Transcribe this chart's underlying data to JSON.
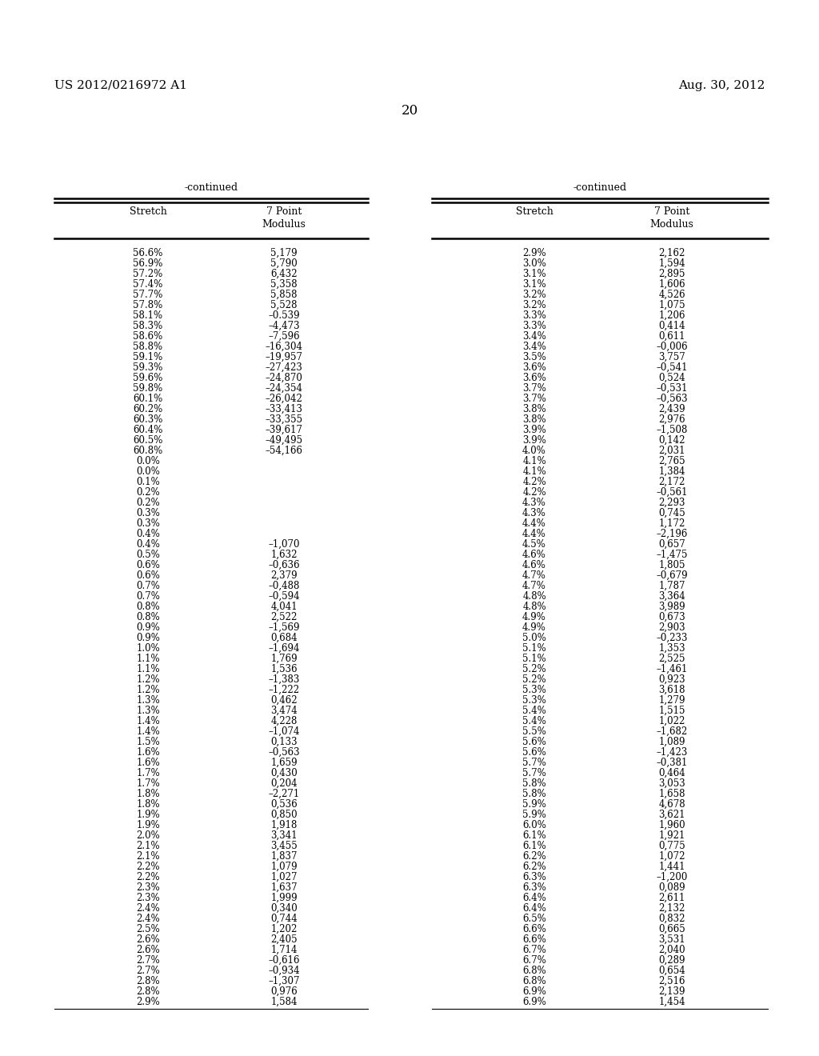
{
  "header_left": "US 2012/0216972 A1",
  "header_right": "Aug. 30, 2012",
  "page_number": "20",
  "continued_label": "-continued",
  "left_data": [
    [
      "56.6%",
      "5,179"
    ],
    [
      "56.9%",
      "5,790"
    ],
    [
      "57.2%",
      "6,432"
    ],
    [
      "57.4%",
      "5,358"
    ],
    [
      "57.7%",
      "5,858"
    ],
    [
      "57.8%",
      "5,528"
    ],
    [
      "58.1%",
      "–0.539"
    ],
    [
      "58.3%",
      "–4,473"
    ],
    [
      "58.6%",
      "–7,596"
    ],
    [
      "58.8%",
      "–16,304"
    ],
    [
      "59.1%",
      "–19,957"
    ],
    [
      "59.3%",
      "–27,423"
    ],
    [
      "59.6%",
      "–24,870"
    ],
    [
      "59.8%",
      "–24,354"
    ],
    [
      "60.1%",
      "–26,042"
    ],
    [
      "60.2%",
      "–33,413"
    ],
    [
      "60.3%",
      "–33,355"
    ],
    [
      "60.4%",
      "–39,617"
    ],
    [
      "60.5%",
      "–49,495"
    ],
    [
      "60.8%",
      "–54,166"
    ],
    [
      "0.0%",
      ""
    ],
    [
      "0.0%",
      ""
    ],
    [
      "0.1%",
      ""
    ],
    [
      "0.2%",
      ""
    ],
    [
      "0.2%",
      ""
    ],
    [
      "0.3%",
      ""
    ],
    [
      "0.3%",
      ""
    ],
    [
      "0.4%",
      ""
    ],
    [
      "0.4%",
      "–1,070"
    ],
    [
      "0.5%",
      "1,632"
    ],
    [
      "0.6%",
      "–0,636"
    ],
    [
      "0.6%",
      "2,379"
    ],
    [
      "0.7%",
      "–0,488"
    ],
    [
      "0.7%",
      "–0,594"
    ],
    [
      "0.8%",
      "4,041"
    ],
    [
      "0.8%",
      "2,522"
    ],
    [
      "0.9%",
      "–1,569"
    ],
    [
      "0.9%",
      "0,684"
    ],
    [
      "1.0%",
      "–1,694"
    ],
    [
      "1.1%",
      "1,769"
    ],
    [
      "1.1%",
      "1,536"
    ],
    [
      "1.2%",
      "–1,383"
    ],
    [
      "1.2%",
      "–1,222"
    ],
    [
      "1.3%",
      "0,462"
    ],
    [
      "1.3%",
      "3,474"
    ],
    [
      "1.4%",
      "4,228"
    ],
    [
      "1.4%",
      "–1,074"
    ],
    [
      "1.5%",
      "0,133"
    ],
    [
      "1.6%",
      "–0,563"
    ],
    [
      "1.6%",
      "1,659"
    ],
    [
      "1.7%",
      "0,430"
    ],
    [
      "1.7%",
      "0,204"
    ],
    [
      "1.8%",
      "–2,271"
    ],
    [
      "1.8%",
      "0,536"
    ],
    [
      "1.9%",
      "0,850"
    ],
    [
      "1.9%",
      "1,918"
    ],
    [
      "2.0%",
      "3,341"
    ],
    [
      "2.1%",
      "3,455"
    ],
    [
      "2.1%",
      "1,837"
    ],
    [
      "2.2%",
      "1,079"
    ],
    [
      "2.2%",
      "1,027"
    ],
    [
      "2.3%",
      "1,637"
    ],
    [
      "2.3%",
      "1,999"
    ],
    [
      "2.4%",
      "0,340"
    ],
    [
      "2.4%",
      "0,744"
    ],
    [
      "2.5%",
      "1,202"
    ],
    [
      "2.6%",
      "2,405"
    ],
    [
      "2.6%",
      "1,714"
    ],
    [
      "2.7%",
      "–0,616"
    ],
    [
      "2.7%",
      "–0,934"
    ],
    [
      "2.8%",
      "–1,307"
    ],
    [
      "2.8%",
      "0,976"
    ],
    [
      "2.9%",
      "1,584"
    ]
  ],
  "right_data": [
    [
      "2.9%",
      "2,162"
    ],
    [
      "3.0%",
      "1,594"
    ],
    [
      "3.1%",
      "2,895"
    ],
    [
      "3.1%",
      "1,606"
    ],
    [
      "3.2%",
      "4,526"
    ],
    [
      "3.2%",
      "1,075"
    ],
    [
      "3.3%",
      "1,206"
    ],
    [
      "3.3%",
      "0,414"
    ],
    [
      "3.4%",
      "0,611"
    ],
    [
      "3.4%",
      "–0,006"
    ],
    [
      "3.5%",
      "3,757"
    ],
    [
      "3.6%",
      "–0,541"
    ],
    [
      "3.6%",
      "0,524"
    ],
    [
      "3.7%",
      "–0,531"
    ],
    [
      "3.7%",
      "–0,563"
    ],
    [
      "3.8%",
      "2,439"
    ],
    [
      "3.8%",
      "2,976"
    ],
    [
      "3.9%",
      "–1,508"
    ],
    [
      "3.9%",
      "0,142"
    ],
    [
      "4.0%",
      "2,031"
    ],
    [
      "4.1%",
      "2,765"
    ],
    [
      "4.1%",
      "1,384"
    ],
    [
      "4.2%",
      "2,172"
    ],
    [
      "4.2%",
      "–0,561"
    ],
    [
      "4.3%",
      "2,293"
    ],
    [
      "4.3%",
      "0,745"
    ],
    [
      "4.4%",
      "1,172"
    ],
    [
      "4.4%",
      "–2,196"
    ],
    [
      "4.5%",
      "0,657"
    ],
    [
      "4.6%",
      "–1,475"
    ],
    [
      "4.6%",
      "1,805"
    ],
    [
      "4.7%",
      "–0,679"
    ],
    [
      "4.7%",
      "1,787"
    ],
    [
      "4.8%",
      "3,364"
    ],
    [
      "4.8%",
      "3,989"
    ],
    [
      "4.9%",
      "0,673"
    ],
    [
      "4.9%",
      "2,903"
    ],
    [
      "5.0%",
      "–0,233"
    ],
    [
      "5.1%",
      "1,353"
    ],
    [
      "5.1%",
      "2,525"
    ],
    [
      "5.2%",
      "–1,461"
    ],
    [
      "5.2%",
      "0,923"
    ],
    [
      "5.3%",
      "3,618"
    ],
    [
      "5.3%",
      "1,279"
    ],
    [
      "5.4%",
      "1,515"
    ],
    [
      "5.4%",
      "1,022"
    ],
    [
      "5.5%",
      "–1,682"
    ],
    [
      "5.6%",
      "1,089"
    ],
    [
      "5.6%",
      "–1,423"
    ],
    [
      "5.7%",
      "–0,381"
    ],
    [
      "5.7%",
      "0,464"
    ],
    [
      "5.8%",
      "3,053"
    ],
    [
      "5.8%",
      "1,658"
    ],
    [
      "5.9%",
      "4,678"
    ],
    [
      "5.9%",
      "3,621"
    ],
    [
      "6.0%",
      "1,960"
    ],
    [
      "6.1%",
      "1,921"
    ],
    [
      "6.1%",
      "0,775"
    ],
    [
      "6.2%",
      "1,072"
    ],
    [
      "6.2%",
      "1,441"
    ],
    [
      "6.3%",
      "–1,200"
    ],
    [
      "6.3%",
      "0,089"
    ],
    [
      "6.4%",
      "2,611"
    ],
    [
      "6.4%",
      "2,132"
    ],
    [
      "6.5%",
      "0,832"
    ],
    [
      "6.6%",
      "0,665"
    ],
    [
      "6.6%",
      "3,531"
    ],
    [
      "6.7%",
      "2,040"
    ],
    [
      "6.7%",
      "0,289"
    ],
    [
      "6.8%",
      "0,654"
    ],
    [
      "6.8%",
      "2,516"
    ],
    [
      "6.9%",
      "2,139"
    ],
    [
      "6.9%",
      "1,454"
    ]
  ]
}
